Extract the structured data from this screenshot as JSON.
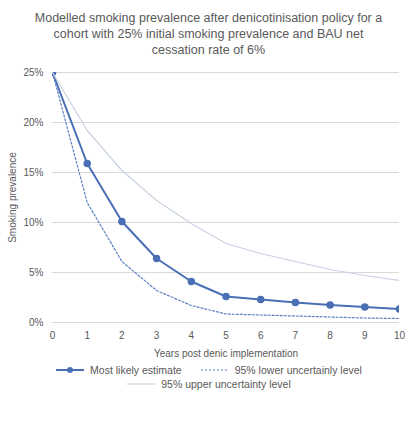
{
  "chart_data": {
    "type": "line",
    "title": "Modelled smoking prevalence after denicotinisation policy for a cohort with 25% initial smoking prevalence and BAU net cessation rate of 6%",
    "x_label": "Years post denic implementation",
    "y_label": "Smoking prevalence",
    "x": [
      0,
      1,
      2,
      3,
      4,
      5,
      6,
      7,
      8,
      9,
      10
    ],
    "series": [
      {
        "name": "Most likely estimate",
        "color": "#4a6fb5",
        "marker": "circle",
        "line_style": "solid",
        "values": [
          25,
          15.9,
          10.1,
          6.4,
          4.1,
          2.6,
          2.3,
          2.0,
          1.75,
          1.55,
          1.35
        ]
      },
      {
        "name": "95% lower uncertainly level",
        "color": "#5b7fc4",
        "line_style": "dotted",
        "values": [
          25,
          12.0,
          6.1,
          3.2,
          1.7,
          0.85,
          0.75,
          0.65,
          0.55,
          0.45,
          0.4
        ]
      },
      {
        "name": "95% upper uncertainty level",
        "color": "#c9d2e3",
        "line_style": "solid",
        "values": [
          25,
          19.2,
          15.2,
          12.2,
          9.9,
          7.9,
          6.9,
          6.1,
          5.3,
          4.7,
          4.2
        ]
      }
    ],
    "xlim": [
      0,
      10
    ],
    "xticks": [
      0,
      1,
      2,
      3,
      4,
      5,
      6,
      7,
      8,
      9,
      10
    ],
    "ylim": [
      0,
      25
    ],
    "yticks": [
      {
        "value": 0,
        "label": "0%"
      },
      {
        "value": 5,
        "label": "5%"
      },
      {
        "value": 10,
        "label": "10%"
      },
      {
        "value": 15,
        "label": "15%"
      },
      {
        "value": 20,
        "label": "20%"
      },
      {
        "value": 25,
        "label": "25%"
      }
    ],
    "grid": true,
    "legend": "bottom"
  }
}
